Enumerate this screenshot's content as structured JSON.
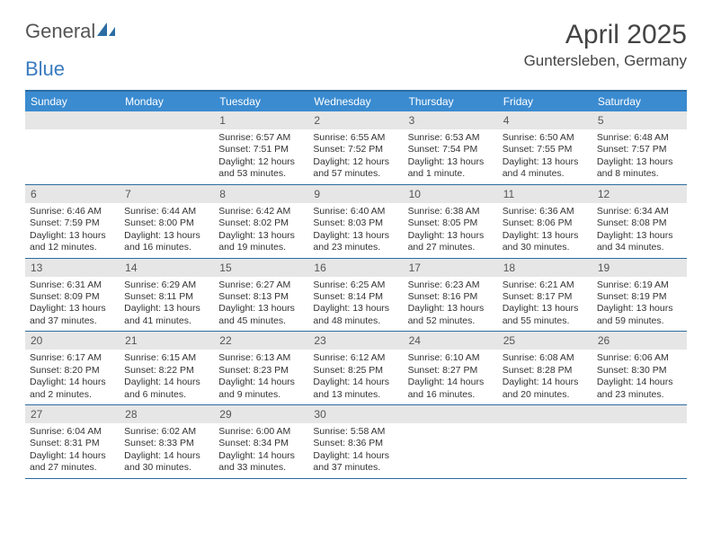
{
  "brand": {
    "part1": "General",
    "part2": "Blue"
  },
  "title": "April 2025",
  "location": "Guntersleben, Germany",
  "colors": {
    "header_bg": "#3b8bd0",
    "border": "#2b6ca3",
    "daynum_bg": "#e6e6e6",
    "text": "#333333",
    "title_text": "#444444"
  },
  "day_names": [
    "Sunday",
    "Monday",
    "Tuesday",
    "Wednesday",
    "Thursday",
    "Friday",
    "Saturday"
  ],
  "weeks": [
    [
      {
        "empty": true
      },
      {
        "empty": true
      },
      {
        "day": "1",
        "sunrise": "Sunrise: 6:57 AM",
        "sunset": "Sunset: 7:51 PM",
        "daylight": "Daylight: 12 hours and 53 minutes."
      },
      {
        "day": "2",
        "sunrise": "Sunrise: 6:55 AM",
        "sunset": "Sunset: 7:52 PM",
        "daylight": "Daylight: 12 hours and 57 minutes."
      },
      {
        "day": "3",
        "sunrise": "Sunrise: 6:53 AM",
        "sunset": "Sunset: 7:54 PM",
        "daylight": "Daylight: 13 hours and 1 minute."
      },
      {
        "day": "4",
        "sunrise": "Sunrise: 6:50 AM",
        "sunset": "Sunset: 7:55 PM",
        "daylight": "Daylight: 13 hours and 4 minutes."
      },
      {
        "day": "5",
        "sunrise": "Sunrise: 6:48 AM",
        "sunset": "Sunset: 7:57 PM",
        "daylight": "Daylight: 13 hours and 8 minutes."
      }
    ],
    [
      {
        "day": "6",
        "sunrise": "Sunrise: 6:46 AM",
        "sunset": "Sunset: 7:59 PM",
        "daylight": "Daylight: 13 hours and 12 minutes."
      },
      {
        "day": "7",
        "sunrise": "Sunrise: 6:44 AM",
        "sunset": "Sunset: 8:00 PM",
        "daylight": "Daylight: 13 hours and 16 minutes."
      },
      {
        "day": "8",
        "sunrise": "Sunrise: 6:42 AM",
        "sunset": "Sunset: 8:02 PM",
        "daylight": "Daylight: 13 hours and 19 minutes."
      },
      {
        "day": "9",
        "sunrise": "Sunrise: 6:40 AM",
        "sunset": "Sunset: 8:03 PM",
        "daylight": "Daylight: 13 hours and 23 minutes."
      },
      {
        "day": "10",
        "sunrise": "Sunrise: 6:38 AM",
        "sunset": "Sunset: 8:05 PM",
        "daylight": "Daylight: 13 hours and 27 minutes."
      },
      {
        "day": "11",
        "sunrise": "Sunrise: 6:36 AM",
        "sunset": "Sunset: 8:06 PM",
        "daylight": "Daylight: 13 hours and 30 minutes."
      },
      {
        "day": "12",
        "sunrise": "Sunrise: 6:34 AM",
        "sunset": "Sunset: 8:08 PM",
        "daylight": "Daylight: 13 hours and 34 minutes."
      }
    ],
    [
      {
        "day": "13",
        "sunrise": "Sunrise: 6:31 AM",
        "sunset": "Sunset: 8:09 PM",
        "daylight": "Daylight: 13 hours and 37 minutes."
      },
      {
        "day": "14",
        "sunrise": "Sunrise: 6:29 AM",
        "sunset": "Sunset: 8:11 PM",
        "daylight": "Daylight: 13 hours and 41 minutes."
      },
      {
        "day": "15",
        "sunrise": "Sunrise: 6:27 AM",
        "sunset": "Sunset: 8:13 PM",
        "daylight": "Daylight: 13 hours and 45 minutes."
      },
      {
        "day": "16",
        "sunrise": "Sunrise: 6:25 AM",
        "sunset": "Sunset: 8:14 PM",
        "daylight": "Daylight: 13 hours and 48 minutes."
      },
      {
        "day": "17",
        "sunrise": "Sunrise: 6:23 AM",
        "sunset": "Sunset: 8:16 PM",
        "daylight": "Daylight: 13 hours and 52 minutes."
      },
      {
        "day": "18",
        "sunrise": "Sunrise: 6:21 AM",
        "sunset": "Sunset: 8:17 PM",
        "daylight": "Daylight: 13 hours and 55 minutes."
      },
      {
        "day": "19",
        "sunrise": "Sunrise: 6:19 AM",
        "sunset": "Sunset: 8:19 PM",
        "daylight": "Daylight: 13 hours and 59 minutes."
      }
    ],
    [
      {
        "day": "20",
        "sunrise": "Sunrise: 6:17 AM",
        "sunset": "Sunset: 8:20 PM",
        "daylight": "Daylight: 14 hours and 2 minutes."
      },
      {
        "day": "21",
        "sunrise": "Sunrise: 6:15 AM",
        "sunset": "Sunset: 8:22 PM",
        "daylight": "Daylight: 14 hours and 6 minutes."
      },
      {
        "day": "22",
        "sunrise": "Sunrise: 6:13 AM",
        "sunset": "Sunset: 8:23 PM",
        "daylight": "Daylight: 14 hours and 9 minutes."
      },
      {
        "day": "23",
        "sunrise": "Sunrise: 6:12 AM",
        "sunset": "Sunset: 8:25 PM",
        "daylight": "Daylight: 14 hours and 13 minutes."
      },
      {
        "day": "24",
        "sunrise": "Sunrise: 6:10 AM",
        "sunset": "Sunset: 8:27 PM",
        "daylight": "Daylight: 14 hours and 16 minutes."
      },
      {
        "day": "25",
        "sunrise": "Sunrise: 6:08 AM",
        "sunset": "Sunset: 8:28 PM",
        "daylight": "Daylight: 14 hours and 20 minutes."
      },
      {
        "day": "26",
        "sunrise": "Sunrise: 6:06 AM",
        "sunset": "Sunset: 8:30 PM",
        "daylight": "Daylight: 14 hours and 23 minutes."
      }
    ],
    [
      {
        "day": "27",
        "sunrise": "Sunrise: 6:04 AM",
        "sunset": "Sunset: 8:31 PM",
        "daylight": "Daylight: 14 hours and 27 minutes."
      },
      {
        "day": "28",
        "sunrise": "Sunrise: 6:02 AM",
        "sunset": "Sunset: 8:33 PM",
        "daylight": "Daylight: 14 hours and 30 minutes."
      },
      {
        "day": "29",
        "sunrise": "Sunrise: 6:00 AM",
        "sunset": "Sunset: 8:34 PM",
        "daylight": "Daylight: 14 hours and 33 minutes."
      },
      {
        "day": "30",
        "sunrise": "Sunrise: 5:58 AM",
        "sunset": "Sunset: 8:36 PM",
        "daylight": "Daylight: 14 hours and 37 minutes."
      },
      {
        "empty": true
      },
      {
        "empty": true
      },
      {
        "empty": true
      }
    ]
  ]
}
